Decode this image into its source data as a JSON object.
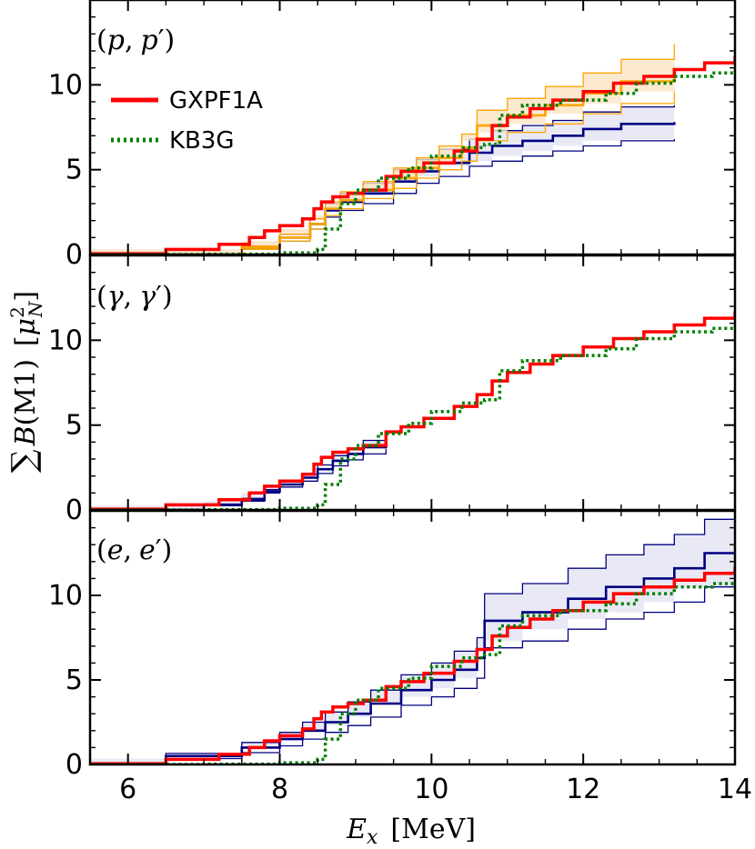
{
  "chart_data": {
    "type": "line",
    "step": true,
    "xlabel": "E_x [MeV]",
    "xlabel_parts": {
      "symbol": "E",
      "subscript": "x",
      "unit": "[MeV]"
    },
    "ylabel": "∑ B(M1) [μ_N^2]",
    "ylabel_parts": {
      "sum": "∑",
      "symbol": "B",
      "paren": "(M1)",
      "unit_open": "[",
      "mu": "μ",
      "sup": "2",
      "sub": "N",
      "unit_close": "]"
    },
    "xlim": [
      5.5,
      14
    ],
    "ylim": [
      0,
      15
    ],
    "xticks": [
      6,
      8,
      10,
      12,
      14
    ],
    "yticks": [
      0,
      5,
      10
    ],
    "legend": {
      "placement": "upper-left of top panel",
      "entries": [
        {
          "name": "GXPF1A",
          "color": "#ff0000",
          "style": "solid"
        },
        {
          "name": "KB3G",
          "color": "#008000",
          "style": "dotted"
        }
      ]
    },
    "colors": {
      "gxpf1a": "#ff0000",
      "kb3g": "#008000",
      "exp": "#000080",
      "band_fill": "#e2e4f2",
      "exp_pp_orange": "#ffa500",
      "band_fill_orange": "#fbe5c4"
    },
    "model_series": [
      {
        "name": "GXPF1A",
        "x": [
          5.5,
          6.5,
          7.2,
          7.6,
          7.8,
          8.0,
          8.3,
          8.45,
          8.55,
          8.7,
          8.9,
          9.1,
          9.4,
          9.6,
          9.9,
          10.3,
          10.6,
          10.8,
          11.0,
          11.3,
          11.6,
          12.0,
          12.4,
          12.8,
          13.2,
          13.6,
          14.0
        ],
        "y": [
          0.05,
          0.3,
          0.6,
          1.0,
          1.4,
          1.7,
          2.1,
          2.7,
          3.1,
          3.4,
          3.6,
          3.8,
          4.6,
          4.9,
          5.4,
          6.1,
          6.8,
          7.6,
          8.1,
          8.6,
          9.1,
          9.6,
          10.1,
          10.5,
          10.9,
          11.3,
          11.7
        ]
      },
      {
        "name": "KB3G",
        "x": [
          5.5,
          7.0,
          8.0,
          8.5,
          8.6,
          8.8,
          9.0,
          9.3,
          9.7,
          10.0,
          10.4,
          10.7,
          10.9,
          11.2,
          11.7,
          12.3,
          12.7,
          13.2,
          13.7,
          14.0
        ],
        "y": [
          0.0,
          0.02,
          0.1,
          0.3,
          1.5,
          3.0,
          3.8,
          4.5,
          5.1,
          5.8,
          6.3,
          6.5,
          8.2,
          8.8,
          9.1,
          9.5,
          10.1,
          10.5,
          10.7,
          10.8
        ]
      }
    ],
    "panels": [
      {
        "label": "(p, p′)",
        "label_parts": {
          "open": "(",
          "a": "p",
          "sep": ",",
          "b": "p",
          "prime": "′",
          "close": ")"
        },
        "exp": [
          {
            "name": "exp-blue",
            "color": "#000080",
            "x": [
              5.5,
              7.5,
              8.0,
              8.4,
              8.6,
              8.8,
              9.1,
              9.5,
              9.8,
              10.1,
              10.5,
              10.8,
              11.2,
              11.6,
              12.0,
              12.5,
              13.2
            ],
            "y": [
              0.0,
              0.4,
              1.0,
              1.8,
              2.6,
              3.1,
              3.6,
              4.3,
              4.9,
              5.4,
              6.0,
              6.4,
              6.7,
              7.0,
              7.4,
              7.7,
              7.8
            ],
            "err": [
              0.0,
              0.1,
              0.2,
              0.3,
              0.4,
              0.5,
              0.6,
              0.7,
              0.7,
              0.8,
              0.8,
              0.9,
              0.9,
              0.9,
              1.0,
              1.0,
              1.0
            ]
          },
          {
            "name": "exp-orange",
            "color": "#ffa500",
            "x": [
              5.5,
              7.5,
              8.0,
              8.4,
              8.6,
              8.8,
              9.1,
              9.5,
              9.8,
              10.1,
              10.4,
              10.6,
              11.0,
              11.5,
              12.0,
              12.5,
              13.2
            ],
            "y": [
              0.0,
              0.4,
              1.0,
              1.8,
              2.7,
              3.2,
              3.8,
              4.5,
              5.1,
              5.7,
              6.3,
              7.6,
              8.2,
              8.8,
              9.5,
              10.2,
              11.0
            ],
            "err": [
              0.0,
              0.1,
              0.2,
              0.3,
              0.4,
              0.5,
              0.5,
              0.6,
              0.6,
              0.7,
              0.8,
              0.9,
              1.0,
              1.1,
              1.2,
              1.3,
              1.4
            ]
          }
        ]
      },
      {
        "label": "(γ, γ′)",
        "label_parts": {
          "open": "(",
          "a": "γ",
          "sep": ",",
          "b": "γ",
          "prime": "′",
          "close": ")"
        },
        "exp": [
          {
            "name": "exp-blue",
            "color": "#000080",
            "x": [
              5.5,
              7.0,
              7.5,
              7.8,
              8.0,
              8.3,
              8.5,
              8.7,
              8.9,
              9.1,
              9.4
            ],
            "y": [
              0.0,
              0.3,
              0.6,
              1.1,
              1.5,
              1.9,
              2.4,
              2.9,
              3.3,
              3.7,
              4.0
            ],
            "err": [
              0.0,
              0.05,
              0.08,
              0.1,
              0.15,
              0.2,
              0.25,
              0.3,
              0.35,
              0.4,
              0.4
            ]
          }
        ]
      },
      {
        "label": "(e, e′)",
        "label_parts": {
          "open": "(",
          "a": "e",
          "sep": ",",
          "b": "e",
          "prime": "′",
          "close": ")"
        },
        "exp": [
          {
            "name": "exp-blue",
            "color": "#000080",
            "x": [
              5.5,
              6.5,
              7.5,
              8.0,
              8.3,
              8.6,
              8.9,
              9.2,
              9.6,
              10.0,
              10.3,
              10.6,
              10.7,
              11.2,
              11.8,
              12.3,
              12.8,
              13.2,
              13.6,
              14.0
            ],
            "y": [
              0.0,
              0.5,
              1.0,
              1.5,
              2.0,
              2.5,
              3.0,
              3.6,
              4.4,
              5.0,
              5.6,
              6.3,
              8.5,
              9.0,
              9.8,
              10.5,
              11.0,
              11.6,
              12.5,
              12.5
            ],
            "err": [
              0.0,
              0.15,
              0.3,
              0.4,
              0.5,
              0.6,
              0.7,
              0.8,
              0.9,
              1.0,
              1.1,
              1.2,
              1.6,
              1.7,
              1.8,
              1.9,
              2.0,
              2.0,
              2.0,
              2.0
            ]
          }
        ]
      }
    ]
  }
}
